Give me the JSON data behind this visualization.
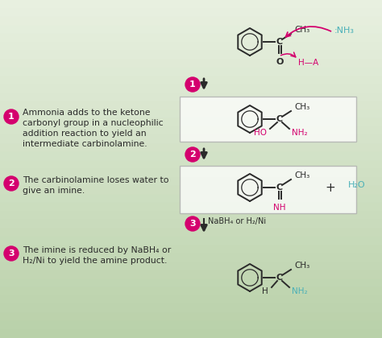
{
  "bg_top": "#e8f0e0",
  "bg_bottom": "#c8ddb8",
  "pink": "#d4006e",
  "teal": "#4ab0b8",
  "dark": "#2a2a2a",
  "gray": "#888888",
  "step1_text_line1": "Ammonia adds to the ketone",
  "step1_text_line2": "carbonyl group in a nucleophilic",
  "step1_text_line3": "addition reaction to yield an",
  "step1_text_line4": "intermediate carbinolamine.",
  "step2_text_line1": "The carbinolamine loses water to",
  "step2_text_line2": "give an imine.",
  "step3_text_line1": "The imine is reduced by NaBH₄ or",
  "step3_text_line2": "H₂/Ni to yield the amine product.",
  "nh3_label": ":NH₃",
  "ha_label": "H—A",
  "h2o_label": "H₂O",
  "plus_label": "+",
  "nabh4_label": "NaBH₄ or H₂/Ni",
  "ch3": "CH₃",
  "ho": "HO",
  "nh2": "NH₂",
  "nh": "NH",
  "H": "H"
}
